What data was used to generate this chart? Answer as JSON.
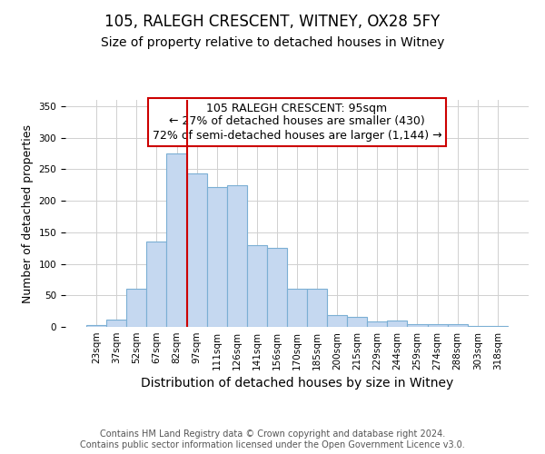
{
  "title": "105, RALEGH CRESCENT, WITNEY, OX28 5FY",
  "subtitle": "Size of property relative to detached houses in Witney",
  "xlabel": "Distribution of detached houses by size in Witney",
  "ylabel": "Number of detached properties",
  "bar_labels": [
    "23sqm",
    "37sqm",
    "52sqm",
    "67sqm",
    "82sqm",
    "97sqm",
    "111sqm",
    "126sqm",
    "141sqm",
    "156sqm",
    "170sqm",
    "185sqm",
    "200sqm",
    "215sqm",
    "229sqm",
    "244sqm",
    "259sqm",
    "274sqm",
    "288sqm",
    "303sqm",
    "318sqm"
  ],
  "bar_values": [
    3,
    11,
    60,
    135,
    275,
    243,
    222,
    225,
    130,
    125,
    61,
    60,
    19,
    16,
    9,
    10,
    4,
    5,
    5,
    2,
    2
  ],
  "bar_color": "#c5d8f0",
  "bar_edge_color": "#7bafd4",
  "annotation_title": "105 RALEGH CRESCENT: 95sqm",
  "annotation_line1": "← 27% of detached houses are smaller (430)",
  "annotation_line2": "72% of semi-detached houses are larger (1,144) →",
  "vline_x_index": 5,
  "vline_color": "#cc0000",
  "annotation_box_color": "#ffffff",
  "annotation_box_edge": "#cc0000",
  "ylim": [
    0,
    360
  ],
  "yticks": [
    0,
    50,
    100,
    150,
    200,
    250,
    300,
    350
  ],
  "footer_line1": "Contains HM Land Registry data © Crown copyright and database right 2024.",
  "footer_line2": "Contains public sector information licensed under the Open Government Licence v3.0.",
  "background_color": "#ffffff",
  "grid_color": "#d0d0d0",
  "title_fontsize": 12,
  "subtitle_fontsize": 10,
  "xlabel_fontsize": 10,
  "ylabel_fontsize": 9,
  "tick_fontsize": 7.5,
  "footer_fontsize": 7,
  "annotation_fontsize": 9
}
